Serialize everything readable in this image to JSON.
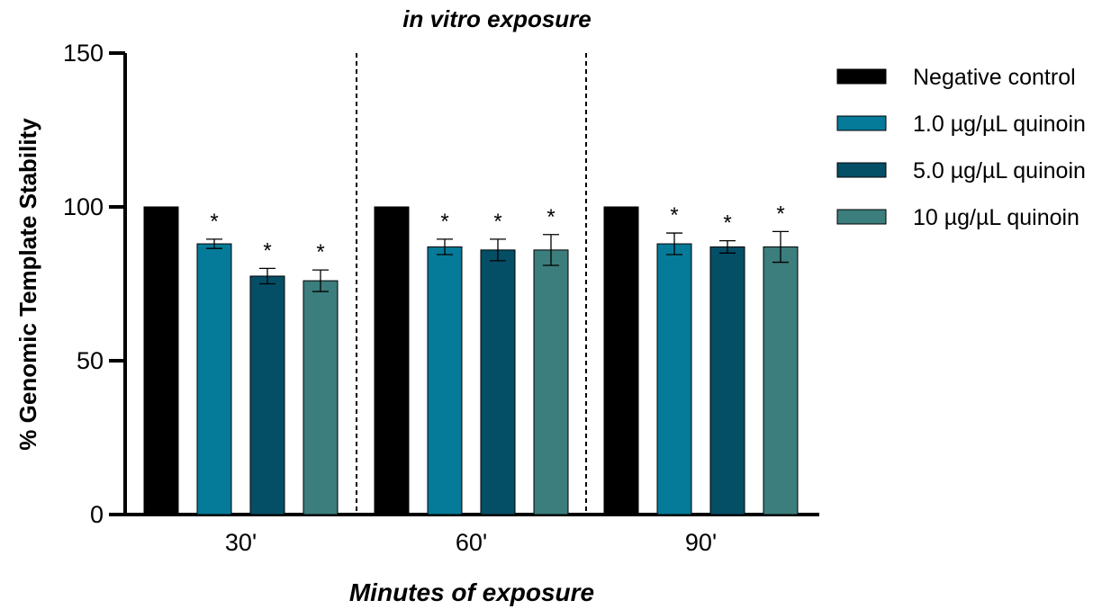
{
  "chart_data": {
    "type": "bar",
    "title": "in vitro exposure",
    "xlabel": "Minutes of exposure",
    "ylabel": "% Genomic Template Stability",
    "ylim": [
      0,
      150
    ],
    "yticks": [
      0,
      50,
      100,
      150
    ],
    "categories": [
      "30'",
      "60'",
      "90'"
    ],
    "series": [
      {
        "name": "Negative control",
        "color": "#000000",
        "values": [
          100,
          100,
          100
        ],
        "errors": [
          0,
          0,
          0
        ],
        "significant": [
          false,
          false,
          false
        ]
      },
      {
        "name": "1.0 µg/µL quinoin",
        "color": "#067a99",
        "values": [
          88,
          87,
          88
        ],
        "errors": [
          1.5,
          2.5,
          3.5
        ],
        "significant": [
          true,
          true,
          true
        ]
      },
      {
        "name": "5.0 µg/µL quinoin",
        "color": "#044f66",
        "values": [
          77.5,
          86,
          87
        ],
        "errors": [
          2.5,
          3.5,
          2
        ],
        "significant": [
          true,
          true,
          true
        ]
      },
      {
        "name": "10 µg/µL quinoin",
        "color": "#3c7d7d",
        "values": [
          76,
          86,
          87
        ],
        "errors": [
          3.5,
          5,
          5
        ],
        "significant": [
          true,
          true,
          true
        ]
      }
    ],
    "significance_marker": "*",
    "group_separators": "dashed",
    "legend_position": "right",
    "grid": false
  }
}
